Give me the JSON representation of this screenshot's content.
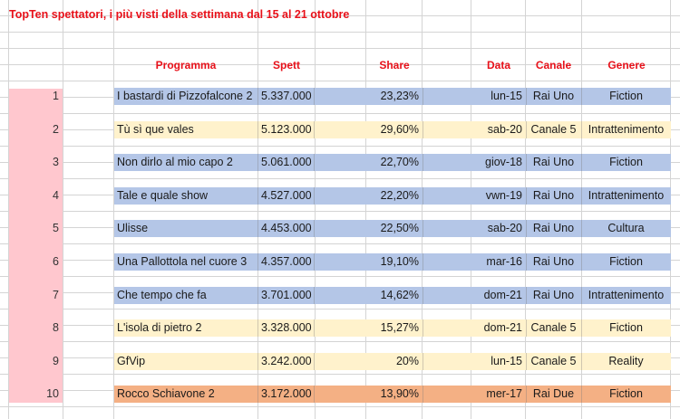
{
  "title": "TopTen spettatori, i più visti della settimana dal 15 al 21 ottobre",
  "headers": {
    "programma": "Programma",
    "spett": "Spett",
    "share": "Share",
    "data": "Data",
    "canale": "Canale",
    "genere": "Genere"
  },
  "colors": {
    "title": "#e8111a",
    "rank_fill": "#ffc7ce",
    "rai_row": "#b4c6e7",
    "canale5_row": "#fff2cc",
    "raidue_row": "#f4b084"
  },
  "rows": [
    {
      "rank": "1",
      "programma": "I bastardi di Pizzofalcone 2",
      "spett": "5.337.000",
      "share": "23,23%",
      "data": "lun-15",
      "canale": "Rai Uno",
      "genere": "Fiction"
    },
    {
      "rank": "2",
      "programma": "Tù sì que vales",
      "spett": "5.123.000",
      "share": "29,60%",
      "data": "sab-20",
      "canale": "Canale 5",
      "genere": "Intrattenimento"
    },
    {
      "rank": "3",
      "programma": "Non dirlo al mio capo 2",
      "spett": "5.061.000",
      "share": "22,70%",
      "data": "giov-18",
      "canale": "Rai Uno",
      "genere": "Fiction"
    },
    {
      "rank": "4",
      "programma": "Tale e quale show",
      "spett": "4.527.000",
      "share": "22,20%",
      "data": "vwn-19",
      "canale": "Rai Uno",
      "genere": "Intrattenimento"
    },
    {
      "rank": "5",
      "programma": "Ulisse",
      "spett": "4.453.000",
      "share": "22,50%",
      "data": "sab-20",
      "canale": "Rai Uno",
      "genere": "Cultura"
    },
    {
      "rank": "6",
      "programma": "Una Pallottola nel cuore 3",
      "spett": "4.357.000",
      "share": "19,10%",
      "data": "mar-16",
      "canale": "Rai Uno",
      "genere": "Fiction"
    },
    {
      "rank": "7",
      "programma": "Che tempo che fa",
      "spett": "3.701.000",
      "share": "14,62%",
      "data": "dom-21",
      "canale": "Rai Uno",
      "genere": "Intrattenimento"
    },
    {
      "rank": "8",
      "programma": "L'isola di pietro 2",
      "spett": "3.328.000",
      "share": "15,27%",
      "data": "dom-21",
      "canale": "Canale 5",
      "genere": "Fiction"
    },
    {
      "rank": "9",
      "programma": "GfVip",
      "spett": "3.242.000",
      "share": "20%",
      "data": "lun-15",
      "canale": "Canale 5",
      "genere": "Reality"
    },
    {
      "rank": "10",
      "programma": "Rocco Schiavone 2",
      "spett": "3.172.000",
      "share": "13,90%",
      "data": "mer-17",
      "canale": "Rai Due",
      "genere": "Fiction"
    }
  ]
}
